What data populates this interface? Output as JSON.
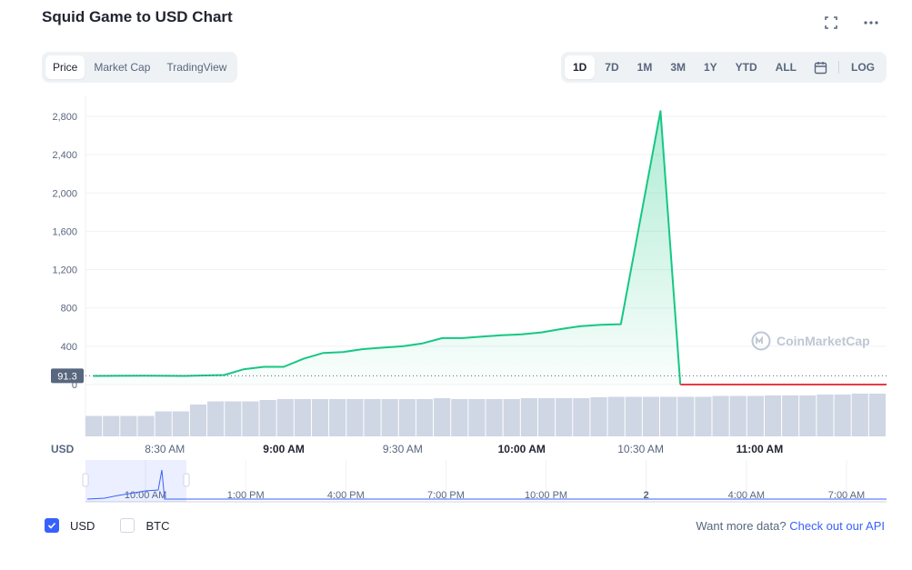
{
  "title": "Squid Game to USD Chart",
  "icons": {
    "fullscreen": "fullscreen-icon",
    "more": "more-dots-icon",
    "calendar": "calendar-icon",
    "watermark_logo": "coinmarketcap-logo-icon",
    "check": "check-icon"
  },
  "view_tabs": [
    {
      "label": "Price",
      "active": true
    },
    {
      "label": "Market Cap",
      "active": false
    },
    {
      "label": "TradingView",
      "active": false
    }
  ],
  "range_tabs": [
    {
      "label": "1D",
      "active": true
    },
    {
      "label": "7D",
      "active": false
    },
    {
      "label": "1M",
      "active": false
    },
    {
      "label": "3M",
      "active": false
    },
    {
      "label": "1Y",
      "active": false
    },
    {
      "label": "YTD",
      "active": false
    },
    {
      "label": "ALL",
      "active": false
    }
  ],
  "log_label": "LOG",
  "watermark": "CoinMarketCap",
  "colors": {
    "up": "#16c784",
    "down": "#ea3943",
    "volume": "#cfd6e4",
    "grid": "#eff2f5",
    "axis_text": "#58667e",
    "accent": "#3861fb"
  },
  "chart_data": {
    "type": "line",
    "currency_label": "USD",
    "y_ticks": [
      0,
      400,
      800,
      1200,
      1600,
      2000,
      2400,
      2800
    ],
    "y_tick_labels": [
      "0",
      "400",
      "800",
      "1,200",
      "1,600",
      "2,000",
      "2,400",
      "2,800"
    ],
    "ylim": [
      0,
      2800
    ],
    "current_price_label": "91.3",
    "current_price": 91.3,
    "x_tick_labels": [
      {
        "label": "8:30 AM",
        "time": "08:30",
        "bold": false
      },
      {
        "label": "9:00 AM",
        "time": "09:00",
        "bold": true
      },
      {
        "label": "9:30 AM",
        "time": "09:30",
        "bold": false
      },
      {
        "label": "10:00 AM",
        "time": "10:00",
        "bold": true
      },
      {
        "label": "10:30 AM",
        "time": "10:30",
        "bold": false
      },
      {
        "label": "11:00 AM",
        "time": "11:00",
        "bold": true
      }
    ],
    "time_range": [
      "08:10",
      "11:32"
    ],
    "series": [
      {
        "color": "up",
        "points": [
          [
            "08:12",
            90
          ],
          [
            "08:25",
            92
          ],
          [
            "08:35",
            90
          ],
          [
            "08:40",
            95
          ],
          [
            "08:45",
            100
          ],
          [
            "08:50",
            160
          ],
          [
            "08:55",
            185
          ],
          [
            "09:00",
            185
          ],
          [
            "09:05",
            270
          ],
          [
            "09:10",
            330
          ],
          [
            "09:15",
            340
          ],
          [
            "09:20",
            370
          ],
          [
            "09:25",
            385
          ],
          [
            "09:30",
            400
          ],
          [
            "09:35",
            430
          ],
          [
            "09:40",
            485
          ],
          [
            "09:45",
            485
          ],
          [
            "09:50",
            500
          ],
          [
            "09:55",
            515
          ],
          [
            "10:00",
            525
          ],
          [
            "10:05",
            545
          ],
          [
            "10:10",
            580
          ],
          [
            "10:15",
            610
          ],
          [
            "10:20",
            625
          ],
          [
            "10:25",
            630
          ],
          [
            "10:35",
            2855
          ],
          [
            "10:40",
            0
          ]
        ]
      },
      {
        "color": "down",
        "points": [
          [
            "10:40",
            0
          ],
          [
            "11:32",
            0
          ]
        ]
      }
    ],
    "volume": [
      0.45,
      0.45,
      0.45,
      0.45,
      0.55,
      0.55,
      0.7,
      0.77,
      0.77,
      0.77,
      0.8,
      0.82,
      0.82,
      0.82,
      0.82,
      0.82,
      0.82,
      0.82,
      0.82,
      0.82,
      0.84,
      0.82,
      0.82,
      0.82,
      0.82,
      0.84,
      0.84,
      0.84,
      0.84,
      0.86,
      0.87,
      0.87,
      0.87,
      0.87,
      0.87,
      0.87,
      0.89,
      0.89,
      0.89,
      0.9,
      0.9,
      0.9,
      0.92,
      0.92,
      0.94,
      0.94
    ],
    "navigator": {
      "tick_labels": [
        "10:00 AM",
        "1:00 PM",
        "4:00 PM",
        "7:00 PM",
        "10:00 PM",
        "2",
        "4:00 AM",
        "7:00 AM"
      ],
      "bold_tick": "2"
    }
  },
  "footer": {
    "usd_label": "USD",
    "usd_checked": true,
    "btc_label": "BTC",
    "btc_checked": false,
    "more_text": "Want more data?",
    "api_link": "Check out our API"
  }
}
